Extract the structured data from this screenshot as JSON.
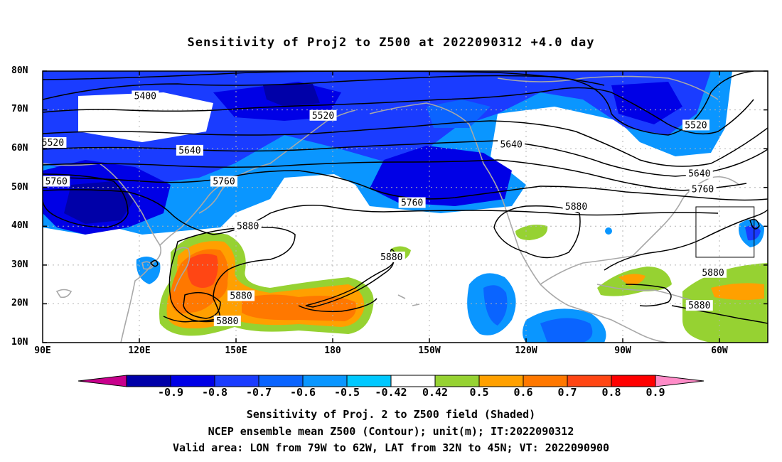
{
  "title": "Sensitivity of Proj2 to Z500 at 2022090312 +4.0 day",
  "lat_labels": [
    "80N",
    "70N",
    "60N",
    "50N",
    "40N",
    "30N",
    "20N",
    "10N"
  ],
  "lon_labels": [
    "90E",
    "120E",
    "150E",
    "180",
    "150W",
    "120W",
    "90W",
    "60W"
  ],
  "contour_labels": [
    {
      "text": "5400",
      "lon": 120,
      "lat": 73.5
    },
    {
      "text": "5520",
      "lon": 93,
      "lat": 61.5
    },
    {
      "text": "5520",
      "lon": 172,
      "lat": 68.5
    },
    {
      "text": "5520",
      "lon": -79,
      "lat": 66
    },
    {
      "text": "5640",
      "lon": 133,
      "lat": 59.5
    },
    {
      "text": "5640",
      "lon": -133,
      "lat": 61
    },
    {
      "text": "5640",
      "lon": -78,
      "lat": 53.5
    },
    {
      "text": "5760",
      "lon": 94,
      "lat": 51.5
    },
    {
      "text": "5760",
      "lon": 143,
      "lat": 51.5
    },
    {
      "text": "5760",
      "lon": -162,
      "lat": 46
    },
    {
      "text": "5760",
      "lon": -77,
      "lat": 49.5
    },
    {
      "text": "5880",
      "lon": -114,
      "lat": 45
    },
    {
      "text": "5880",
      "lon": 150,
      "lat": 40
    },
    {
      "text": "5880",
      "lon": -168,
      "lat": 32
    },
    {
      "text": "5880",
      "lon": -74,
      "lat": 28
    },
    {
      "text": "5880",
      "lon": -78,
      "lat": 19.5
    },
    {
      "text": "5880",
      "lon": 148,
      "lat": 22
    },
    {
      "text": "5880",
      "lon": 144,
      "lat": 15.5
    }
  ],
  "colorbar": {
    "labels": [
      "-0.9",
      "-0.8",
      "-0.7",
      "-0.6",
      "-0.5",
      "-0.42",
      "0.42",
      "0.5",
      "0.6",
      "0.7",
      "0.8",
      "0.9"
    ],
    "colors": [
      "#0000a8",
      "#0000e6",
      "#1a3cff",
      "#0a64ff",
      "#0a96ff",
      "#00c8ff",
      "#ffffff",
      "#96d232",
      "#ffa000",
      "#ff7800",
      "#ff4614",
      "#ff0000"
    ],
    "low_extend_color": "#c8008c",
    "high_extend_color": "#ff8cc8"
  },
  "captions": [
    "Sensitivity of Proj. 2 to Z500 field (Shaded)",
    "NCEP ensemble mean Z500 (Contour); unit(m); IT:2022090312",
    "Valid area: LON from 79W to 62W, LAT from 32N to 45N; VT: 2022090900"
  ],
  "valid_area": {
    "lon_min": -79,
    "lon_max": -62,
    "lat_min": 32,
    "lat_max": 45
  }
}
